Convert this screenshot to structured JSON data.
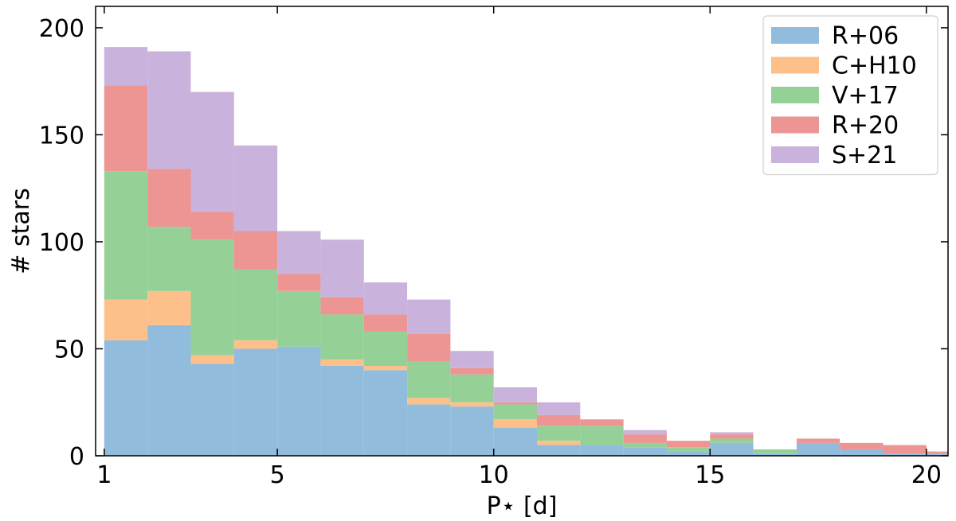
{
  "chart_data": {
    "type": "bar",
    "subtype": "stacked-histogram",
    "xlabel": "P⋆ [d]",
    "ylabel": "# stars",
    "xlim": [
      0.8,
      20.5
    ],
    "ylim": [
      0,
      210
    ],
    "bins": [
      [
        1,
        2
      ],
      [
        2,
        3
      ],
      [
        3,
        4
      ],
      [
        4,
        5
      ],
      [
        5,
        6
      ],
      [
        6,
        7
      ],
      [
        7,
        8
      ],
      [
        8,
        9
      ],
      [
        9,
        10
      ],
      [
        10,
        11
      ],
      [
        11,
        12
      ],
      [
        12,
        13
      ],
      [
        13,
        14
      ],
      [
        14,
        15
      ],
      [
        15,
        16
      ],
      [
        16,
        17
      ],
      [
        17,
        18
      ],
      [
        18,
        19
      ],
      [
        19,
        20
      ],
      [
        20,
        21
      ]
    ],
    "xticks": [
      1,
      5,
      10,
      15,
      20
    ],
    "xtick_labels": [
      "1",
      "5",
      "10",
      "15",
      "20"
    ],
    "yticks": [
      0,
      50,
      100,
      150,
      200
    ],
    "ytick_labels": [
      "0",
      "50",
      "100",
      "150",
      "200"
    ],
    "legend_position": "top-right",
    "grid": false,
    "series": [
      {
        "name": "R+06",
        "color": "#91bcdc",
        "values": [
          54,
          61,
          43,
          50,
          51,
          42,
          40,
          24,
          23,
          13,
          5,
          5,
          4,
          2,
          6,
          1,
          6,
          3,
          1,
          1
        ]
      },
      {
        "name": "C+H10",
        "color": "#fec08a",
        "values": [
          19,
          16,
          4,
          4,
          0,
          3,
          2,
          3,
          2,
          4,
          2,
          0,
          0,
          0,
          0,
          0,
          0,
          0,
          0,
          0
        ]
      },
      {
        "name": "V+17",
        "color": "#95d196",
        "values": [
          60,
          30,
          54,
          33,
          26,
          21,
          16,
          17,
          13,
          7,
          7,
          9,
          2,
          2,
          2,
          2,
          0,
          0,
          0,
          0
        ]
      },
      {
        "name": "R+20",
        "color": "#ec9593",
        "values": [
          40,
          27,
          13,
          18,
          8,
          8,
          8,
          13,
          3,
          1,
          5,
          3,
          4,
          3,
          2,
          0,
          2,
          3,
          4,
          1
        ]
      },
      {
        "name": "S+21",
        "color": "#c9b3dc",
        "values": [
          18,
          55,
          56,
          40,
          20,
          27,
          15,
          16,
          8,
          7,
          6,
          0,
          2,
          0,
          1,
          0,
          0,
          0,
          0,
          0
        ]
      }
    ]
  }
}
